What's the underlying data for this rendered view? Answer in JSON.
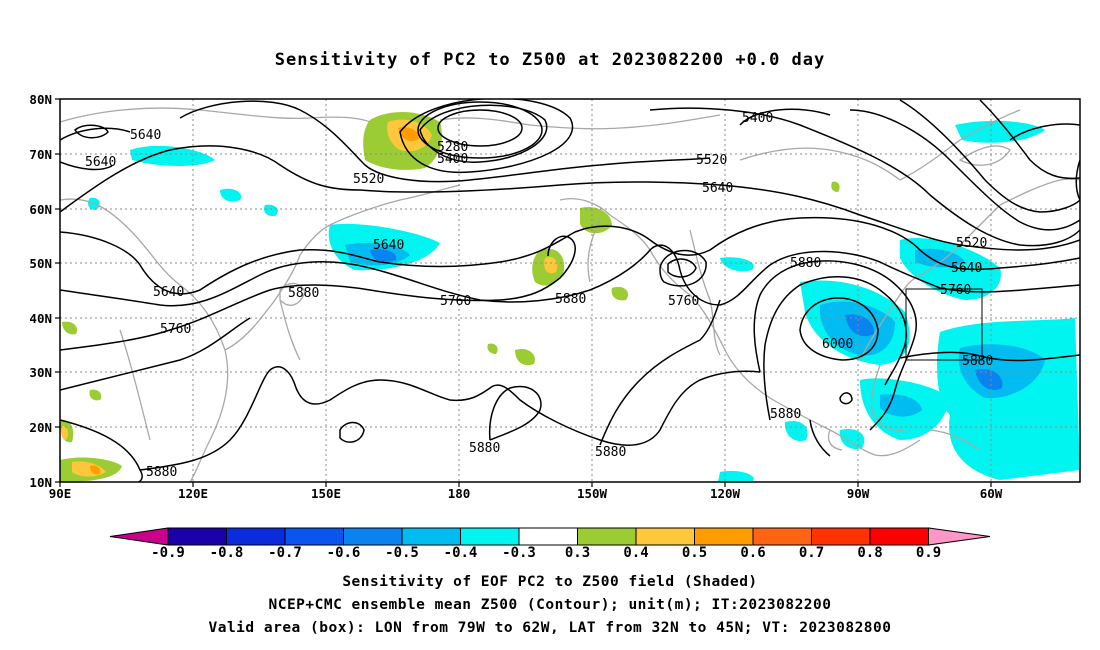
{
  "title": "Sensitivity of PC2 to Z500 at 2023082200 +0.0 day",
  "axes": {
    "lat_labels": [
      "80N",
      "70N",
      "60N",
      "50N",
      "40N",
      "30N",
      "20N",
      "10N"
    ],
    "lon_labels": [
      "90E",
      "120E",
      "150E",
      "180",
      "150W",
      "120W",
      "90W",
      "60W"
    ]
  },
  "contours": {
    "values": [
      "5280",
      "5400",
      "5520",
      "5640",
      "5760",
      "5880",
      "6000"
    ],
    "labels": {
      "l5640a": "5640",
      "l5640b": "5640",
      "l5280": "5280",
      "l5400a": "5400",
      "l5520a": "5520",
      "l5400b": "5400",
      "l5520b": "5520",
      "l5640c": "5640",
      "l5520c": "5520",
      "l5640d": "5640",
      "l5640e": "5640",
      "l5640f": "5640",
      "l5760a": "5760",
      "l5880a": "5880",
      "l5760b": "5760",
      "l5880b": "5880",
      "l5760c": "5760",
      "l5880c": "5880",
      "l5760d": "5760",
      "l6000": "6000",
      "l5880d": "5880",
      "l5880e": "5880",
      "l5880f": "5880",
      "l5880g": "5880",
      "l5880h": "5880"
    }
  },
  "colorbar": {
    "labels": [
      "-0.9",
      "-0.8",
      "-0.7",
      "-0.6",
      "-0.5",
      "-0.4",
      "-0.3",
      "0.3",
      "0.4",
      "0.5",
      "0.6",
      "0.7",
      "0.8",
      "0.9"
    ],
    "colors": [
      "#1a00a8",
      "#0a2cdc",
      "#0a55f0",
      "#0a82f0",
      "#00bcf0",
      "#00f5f0",
      "#ffffff",
      "#9ccc33",
      "#ffc83c",
      "#ff9c00",
      "#ff6414",
      "#ff3200",
      "#ff0000"
    ],
    "low_end_color": "#c8008c",
    "high_end_color": "#ff96c8"
  },
  "valid_box": {
    "lon_from": "79W",
    "lon_to": "62W",
    "lat_from": "32N",
    "lat_to": "45N"
  },
  "captions": {
    "line1": "Sensitivity of EOF PC2 to Z500 field (Shaded)",
    "line2": "NCEP+CMC ensemble mean Z500 (Contour); unit(m); IT:2023082200",
    "line3": "Valid area (box): LON from 79W to 62W, LAT from 32N to 45N; VT: 2023082800"
  }
}
